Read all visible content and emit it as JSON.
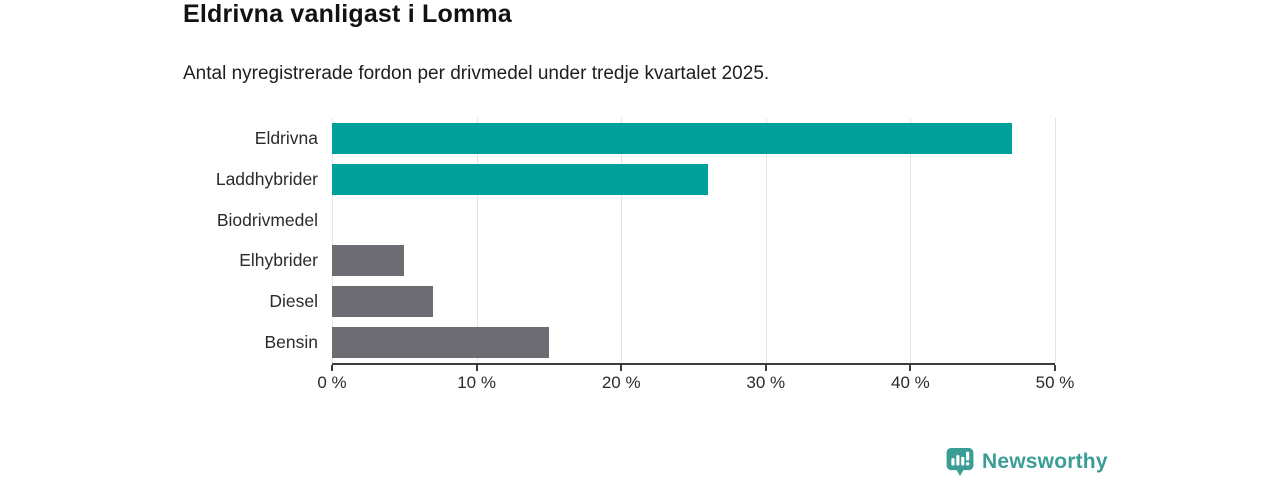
{
  "chart_data": {
    "type": "bar",
    "orientation": "horizontal",
    "title": "Eldrivna vanligast i Lomma",
    "subtitle": "Antal nyregistrerade fordon per drivmedel under tredje kvartalet 2025.",
    "categories": [
      "Eldrivna",
      "Laddhybrider",
      "Biodrivmedel",
      "Elhybrider",
      "Diesel",
      "Bensin"
    ],
    "values": [
      47,
      26,
      0,
      5,
      7,
      15
    ],
    "unit": "%",
    "xlabel": "",
    "ylabel": "",
    "xlim": [
      0,
      50
    ],
    "ticks": [
      0,
      10,
      20,
      30,
      40,
      50
    ],
    "tick_labels": [
      "0 %",
      "10 %",
      "20 %",
      "30 %",
      "40 %",
      "50 %"
    ],
    "bar_colors": [
      "#00a19a",
      "#00a19a",
      "#6c6c72",
      "#6c6c72",
      "#6c6c72",
      "#6c6c72"
    ],
    "grid": "vertical-gridlines-on",
    "legend": false,
    "colors": {
      "accent_teal": "#00a19a",
      "neutral_gray": "#6c6c72",
      "gridline": "#e4e4e6",
      "axis": "#3d3d3d"
    }
  },
  "footer": {
    "brand": "Newsworthy",
    "brand_color": "#3a9e97",
    "logo_icon": "newsworthy-speech-bubble-bar-chart-icon"
  }
}
